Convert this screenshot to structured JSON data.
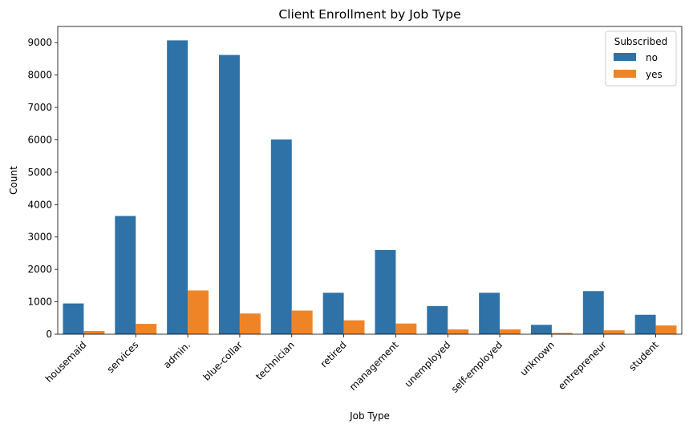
{
  "chart_data": {
    "type": "bar",
    "title": "Client Enrollment by Job Type",
    "xlabel": "Job Type",
    "ylabel": "Count",
    "ylim": [
      0,
      9500
    ],
    "yticks": [
      0,
      1000,
      2000,
      3000,
      4000,
      5000,
      6000,
      7000,
      8000,
      9000
    ],
    "grid": false,
    "legend": {
      "title": "Subscribed",
      "position": "top-right"
    },
    "categories": [
      "housemaid",
      "services",
      "admin.",
      "blue-collar",
      "technician",
      "retired",
      "management",
      "unemployed",
      "self-employed",
      "unknown",
      "entrepreneur",
      "student"
    ],
    "series": [
      {
        "name": "no",
        "color": "#2e72a7",
        "values": [
          950,
          3650,
          9070,
          8620,
          6010,
          1280,
          2600,
          870,
          1280,
          290,
          1330,
          600
        ]
      },
      {
        "name": "yes",
        "color": "#ef8427",
        "values": [
          100,
          320,
          1350,
          640,
          730,
          430,
          330,
          150,
          150,
          40,
          120,
          270
        ]
      }
    ]
  }
}
